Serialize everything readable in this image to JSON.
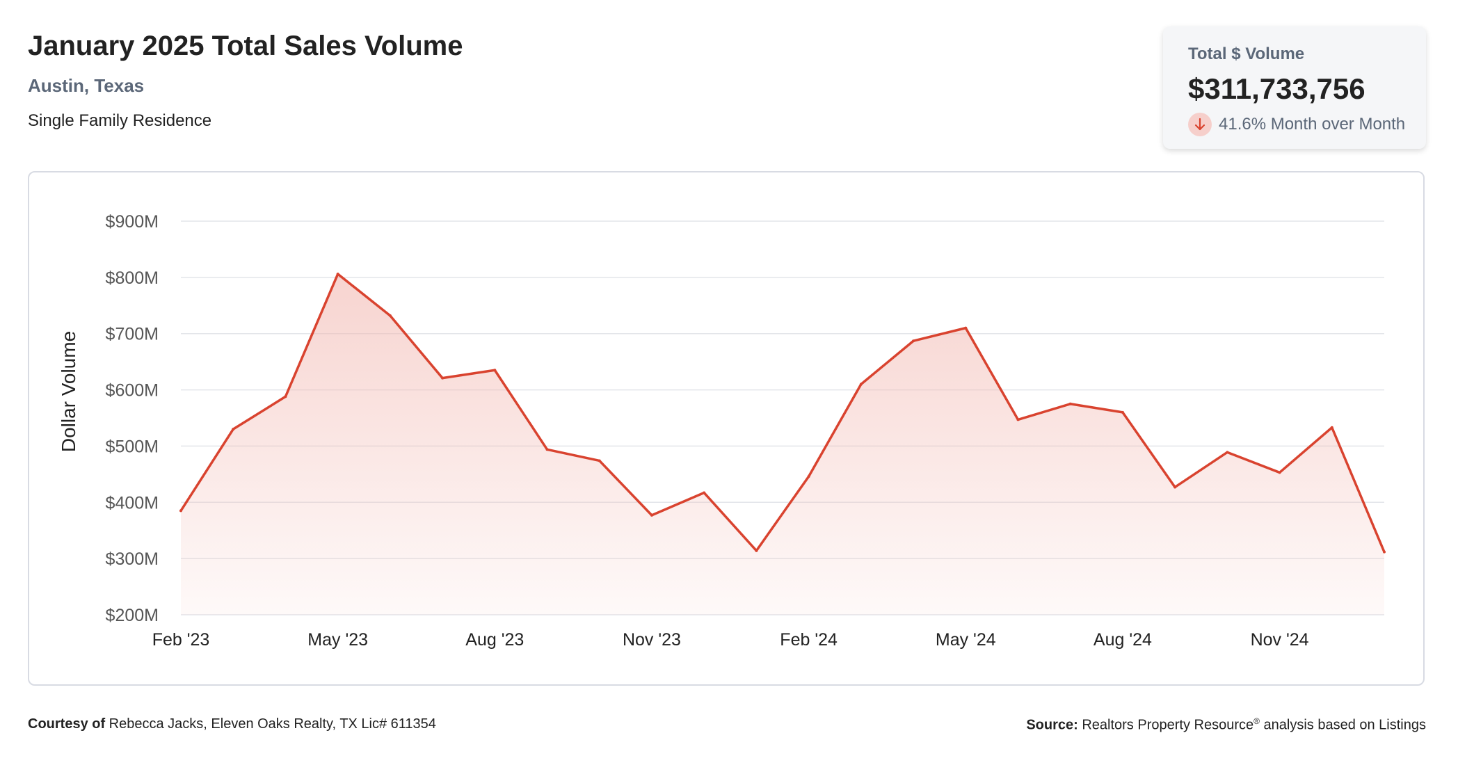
{
  "header": {
    "title": "January 2025 Total Sales Volume",
    "location": "Austin, Texas",
    "property_type": "Single Family Residence"
  },
  "summary_card": {
    "label": "Total $ Volume",
    "value": "$311,733,756",
    "change_text": "41.6% Month over Month",
    "change_direction": "down",
    "icon": "arrow-down-icon",
    "badge_color": "#f6cfcb",
    "arrow_color": "#d9432f"
  },
  "chart_data": {
    "type": "area",
    "ylabel": "Dollar Volume",
    "xlabel": "",
    "ylim": [
      200,
      900
    ],
    "y_unit": "millions USD",
    "yticks": [
      900,
      800,
      700,
      600,
      500,
      400,
      300,
      200
    ],
    "ytick_labels": [
      "$900M",
      "$800M",
      "$700M",
      "$600M",
      "$500M",
      "$400M",
      "$300M",
      "$200M"
    ],
    "x_tick_labels": [
      "Feb '23",
      "May '23",
      "Aug '23",
      "Nov '23",
      "Feb '24",
      "May '24",
      "Aug '24",
      "Nov '24"
    ],
    "x_tick_indices": [
      0,
      3,
      6,
      9,
      12,
      15,
      18,
      21
    ],
    "categories": [
      "Feb '23",
      "Mar '23",
      "Apr '23",
      "May '23",
      "Jun '23",
      "Jul '23",
      "Aug '23",
      "Sep '23",
      "Oct '23",
      "Nov '23",
      "Dec '23",
      "Jan '24",
      "Feb '24",
      "Mar '24",
      "Apr '24",
      "May '24",
      "Jun '24",
      "Jul '24",
      "Aug '24",
      "Sep '24",
      "Oct '24",
      "Nov '24",
      "Dec '24",
      "Jan '25"
    ],
    "values": [
      385,
      530,
      588,
      806,
      732,
      621,
      635,
      494,
      474,
      377,
      417,
      314,
      446,
      610,
      687,
      710,
      547,
      575,
      560,
      427,
      489,
      453,
      533,
      311.7
    ],
    "grid": true,
    "line_color": "#d9432f",
    "fill_color": "#f2b7b0"
  },
  "footer": {
    "courtesy_label": "Courtesy of",
    "courtesy_text": " Rebecca Jacks, Eleven Oaks Realty, TX Lic# 611354",
    "source_label": "Source:",
    "source_text": " Realtors Property Resource",
    "source_sup": "®",
    "source_tail": " analysis based on Listings"
  }
}
